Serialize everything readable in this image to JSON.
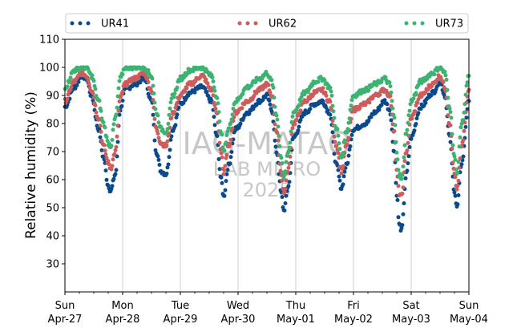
{
  "chart_data": {
    "type": "scatter",
    "ylabel": "Relative humidity (%)",
    "ylim": [
      20,
      110
    ],
    "yticks": [
      30,
      40,
      50,
      60,
      70,
      80,
      90,
      100,
      110
    ],
    "x_range": [
      "2025-04-27T00:00",
      "2025-05-04T00:00"
    ],
    "xticks": [
      {
        "weekday": "Sun",
        "date": "Apr-27"
      },
      {
        "weekday": "Mon",
        "date": "Apr-28"
      },
      {
        "weekday": "Tue",
        "date": "Apr-29"
      },
      {
        "weekday": "Wed",
        "date": "Apr-30"
      },
      {
        "weekday": "Thu",
        "date": "May-01"
      },
      {
        "weekday": "Fri",
        "date": "May-02"
      },
      {
        "weekday": "Sat",
        "date": "May-03"
      },
      {
        "weekday": "Sun",
        "date": "May-04"
      }
    ],
    "grid": "vertical",
    "legend_position": "top",
    "watermark": [
      "IAG-MATAO",
      "LAB MICRO",
      "2025"
    ],
    "series": [
      {
        "name": "UR41",
        "color": "#0b4a8a",
        "points": [
          [
            "2025-04-27T00:00",
            86
          ],
          [
            "2025-04-27T04:00",
            93
          ],
          [
            "2025-04-27T07:00",
            97
          ],
          [
            "2025-04-27T09:00",
            96
          ],
          [
            "2025-04-27T11:00",
            90
          ],
          [
            "2025-04-27T14:00",
            78
          ],
          [
            "2025-04-27T16:00",
            68
          ],
          [
            "2025-04-27T18:00",
            58
          ],
          [
            "2025-04-27T19:00",
            56
          ],
          [
            "2025-04-27T21:00",
            62
          ],
          [
            "2025-04-27T23:00",
            85
          ],
          [
            "2025-04-28T01:00",
            92
          ],
          [
            "2025-04-28T05:00",
            94
          ],
          [
            "2025-04-28T09:00",
            96
          ],
          [
            "2025-04-28T12:00",
            88
          ],
          [
            "2025-04-28T14:00",
            70
          ],
          [
            "2025-04-28T16:00",
            63
          ],
          [
            "2025-04-28T18:00",
            62
          ],
          [
            "2025-04-28T21:00",
            78
          ],
          [
            "2025-04-29T00:00",
            87
          ],
          [
            "2025-04-29T04:00",
            91
          ],
          [
            "2025-04-29T09:00",
            93
          ],
          [
            "2025-04-29T13:00",
            88
          ],
          [
            "2025-04-29T15:00",
            76
          ],
          [
            "2025-04-29T17:00",
            60
          ],
          [
            "2025-04-29T18:00",
            54
          ],
          [
            "2025-04-29T20:00",
            65
          ],
          [
            "2025-04-29T23:00",
            78
          ],
          [
            "2025-04-30T04:00",
            84
          ],
          [
            "2025-04-30T09:00",
            88
          ],
          [
            "2025-04-30T12:00",
            90
          ],
          [
            "2025-04-30T14:00",
            85
          ],
          [
            "2025-04-30T16:00",
            70
          ],
          [
            "2025-04-30T18:00",
            55
          ],
          [
            "2025-04-30T19:00",
            49
          ],
          [
            "2025-04-30T21:00",
            58
          ],
          [
            "2025-04-30T23:00",
            75
          ],
          [
            "2025-05-01T04:00",
            84
          ],
          [
            "2025-05-01T08:00",
            87
          ],
          [
            "2025-05-01T11:00",
            88
          ],
          [
            "2025-05-01T14:00",
            84
          ],
          [
            "2025-05-01T17:00",
            65
          ],
          [
            "2025-05-01T19:00",
            57
          ],
          [
            "2025-05-01T21:00",
            65
          ],
          [
            "2025-05-02T00:00",
            78
          ],
          [
            "2025-05-02T05:00",
            80
          ],
          [
            "2025-05-02T09:00",
            84
          ],
          [
            "2025-05-02T13:00",
            88
          ],
          [
            "2025-05-02T15:00",
            85
          ],
          [
            "2025-05-02T17:00",
            70
          ],
          [
            "2025-05-02T18:00",
            55
          ],
          [
            "2025-05-02T19:00",
            44
          ],
          [
            "2025-05-02T20:00",
            42
          ],
          [
            "2025-05-02T22:00",
            62
          ],
          [
            "2025-05-03T00:00",
            75
          ],
          [
            "2025-05-03T04:00",
            86
          ],
          [
            "2025-05-03T09:00",
            91
          ],
          [
            "2025-05-03T12:00",
            95
          ],
          [
            "2025-05-03T14:00",
            90
          ],
          [
            "2025-05-03T16:00",
            75
          ],
          [
            "2025-05-03T18:00",
            56
          ],
          [
            "2025-05-03T19:00",
            50
          ],
          [
            "2025-05-03T21:00",
            66
          ],
          [
            "2025-05-04T00:00",
            88
          ]
        ]
      },
      {
        "name": "UR62",
        "color": "#cd5c5c",
        "points": [
          [
            "2025-04-27T00:00",
            88
          ],
          [
            "2025-04-27T04:00",
            95
          ],
          [
            "2025-04-27T07:00",
            98
          ],
          [
            "2025-04-27T09:00",
            97
          ],
          [
            "2025-04-27T11:00",
            92
          ],
          [
            "2025-04-27T14:00",
            82
          ],
          [
            "2025-04-27T16:00",
            72
          ],
          [
            "2025-04-27T18:00",
            66
          ],
          [
            "2025-04-27T19:00",
            64
          ],
          [
            "2025-04-27T21:00",
            70
          ],
          [
            "2025-04-27T23:00",
            89
          ],
          [
            "2025-04-28T01:00",
            94
          ],
          [
            "2025-04-28T05:00",
            96
          ],
          [
            "2025-04-28T09:00",
            98
          ],
          [
            "2025-04-28T12:00",
            92
          ],
          [
            "2025-04-28T14:00",
            78
          ],
          [
            "2025-04-28T16:00",
            73
          ],
          [
            "2025-04-28T18:00",
            72
          ],
          [
            "2025-04-28T21:00",
            84
          ],
          [
            "2025-04-29T00:00",
            90
          ],
          [
            "2025-04-29T04:00",
            94
          ],
          [
            "2025-04-29T09:00",
            97
          ],
          [
            "2025-04-29T13:00",
            92
          ],
          [
            "2025-04-29T15:00",
            84
          ],
          [
            "2025-04-29T17:00",
            70
          ],
          [
            "2025-04-29T18:00",
            62
          ],
          [
            "2025-04-29T20:00",
            72
          ],
          [
            "2025-04-29T23:00",
            84
          ],
          [
            "2025-04-30T04:00",
            88
          ],
          [
            "2025-04-30T09:00",
            92
          ],
          [
            "2025-04-30T12:00",
            94
          ],
          [
            "2025-04-30T14:00",
            90
          ],
          [
            "2025-04-30T16:00",
            77
          ],
          [
            "2025-04-30T18:00",
            62
          ],
          [
            "2025-04-30T19:00",
            55
          ],
          [
            "2025-04-30T21:00",
            64
          ],
          [
            "2025-04-30T23:00",
            80
          ],
          [
            "2025-05-01T04:00",
            88
          ],
          [
            "2025-05-01T08:00",
            91
          ],
          [
            "2025-05-01T11:00",
            92
          ],
          [
            "2025-05-01T14:00",
            88
          ],
          [
            "2025-05-01T17:00",
            72
          ],
          [
            "2025-05-01T19:00",
            63
          ],
          [
            "2025-05-01T21:00",
            72
          ],
          [
            "2025-05-02T00:00",
            85
          ],
          [
            "2025-05-02T05:00",
            87
          ],
          [
            "2025-05-02T09:00",
            90
          ],
          [
            "2025-05-02T13:00",
            92
          ],
          [
            "2025-05-02T15:00",
            90
          ],
          [
            "2025-05-02T17:00",
            77
          ],
          [
            "2025-05-02T18:00",
            63
          ],
          [
            "2025-05-02T19:00",
            55
          ],
          [
            "2025-05-02T20:00",
            54
          ],
          [
            "2025-05-02T22:00",
            70
          ],
          [
            "2025-05-03T00:00",
            82
          ],
          [
            "2025-05-03T04:00",
            90
          ],
          [
            "2025-05-03T09:00",
            94
          ],
          [
            "2025-05-03T12:00",
            97
          ],
          [
            "2025-05-03T14:00",
            93
          ],
          [
            "2025-05-03T16:00",
            80
          ],
          [
            "2025-05-03T18:00",
            62
          ],
          [
            "2025-05-03T19:00",
            56
          ],
          [
            "2025-05-03T21:00",
            72
          ],
          [
            "2025-05-04T00:00",
            92
          ]
        ]
      },
      {
        "name": "UR73",
        "color": "#3cb371",
        "points": [
          [
            "2025-04-27T00:00",
            93
          ],
          [
            "2025-04-27T04:00",
            99
          ],
          [
            "2025-04-27T07:00",
            100
          ],
          [
            "2025-04-27T09:00",
            100
          ],
          [
            "2025-04-27T11:00",
            97
          ],
          [
            "2025-04-27T14:00",
            88
          ],
          [
            "2025-04-27T16:00",
            80
          ],
          [
            "2025-04-27T18:00",
            73
          ],
          [
            "2025-04-27T19:00",
            72
          ],
          [
            "2025-04-27T21:00",
            82
          ],
          [
            "2025-04-27T23:00",
            96
          ],
          [
            "2025-04-28T01:00",
            100
          ],
          [
            "2025-04-28T05:00",
            100
          ],
          [
            "2025-04-28T09:00",
            100
          ],
          [
            "2025-04-28T12:00",
            97
          ],
          [
            "2025-04-28T14:00",
            84
          ],
          [
            "2025-04-28T16:00",
            78
          ],
          [
            "2025-04-28T18:00",
            77
          ],
          [
            "2025-04-28T21:00",
            90
          ],
          [
            "2025-04-29T00:00",
            96
          ],
          [
            "2025-04-29T04:00",
            99
          ],
          [
            "2025-04-29T09:00",
            100
          ],
          [
            "2025-04-29T13:00",
            97
          ],
          [
            "2025-04-29T15:00",
            90
          ],
          [
            "2025-04-29T17:00",
            77
          ],
          [
            "2025-04-29T18:00",
            70
          ],
          [
            "2025-04-29T20:00",
            78
          ],
          [
            "2025-04-29T23:00",
            88
          ],
          [
            "2025-04-30T04:00",
            93
          ],
          [
            "2025-04-30T09:00",
            96
          ],
          [
            "2025-04-30T12:00",
            98
          ],
          [
            "2025-04-30T14:00",
            95
          ],
          [
            "2025-04-30T16:00",
            83
          ],
          [
            "2025-04-30T18:00",
            68
          ],
          [
            "2025-04-30T19:00",
            61
          ],
          [
            "2025-04-30T21:00",
            70
          ],
          [
            "2025-04-30T23:00",
            84
          ],
          [
            "2025-05-01T04:00",
            91
          ],
          [
            "2025-05-01T08:00",
            95
          ],
          [
            "2025-05-01T11:00",
            96
          ],
          [
            "2025-05-01T14:00",
            93
          ],
          [
            "2025-05-01T17:00",
            78
          ],
          [
            "2025-05-01T19:00",
            68
          ],
          [
            "2025-05-01T21:00",
            77
          ],
          [
            "2025-05-02T00:00",
            90
          ],
          [
            "2025-05-02T05:00",
            92
          ],
          [
            "2025-05-02T09:00",
            94
          ],
          [
            "2025-05-02T13:00",
            96
          ],
          [
            "2025-05-02T15:00",
            94
          ],
          [
            "2025-05-02T17:00",
            82
          ],
          [
            "2025-05-02T18:00",
            70
          ],
          [
            "2025-05-02T19:00",
            62
          ],
          [
            "2025-05-02T20:00",
            60
          ],
          [
            "2025-05-02T22:00",
            77
          ],
          [
            "2025-05-03T00:00",
            88
          ],
          [
            "2025-05-03T04:00",
            95
          ],
          [
            "2025-05-03T09:00",
            98
          ],
          [
            "2025-05-03T12:00",
            100
          ],
          [
            "2025-05-03T14:00",
            98
          ],
          [
            "2025-05-03T16:00",
            86
          ],
          [
            "2025-05-03T18:00",
            68
          ],
          [
            "2025-05-03T19:00",
            62
          ],
          [
            "2025-05-03T21:00",
            80
          ],
          [
            "2025-05-04T00:00",
            97
          ]
        ]
      }
    ]
  }
}
